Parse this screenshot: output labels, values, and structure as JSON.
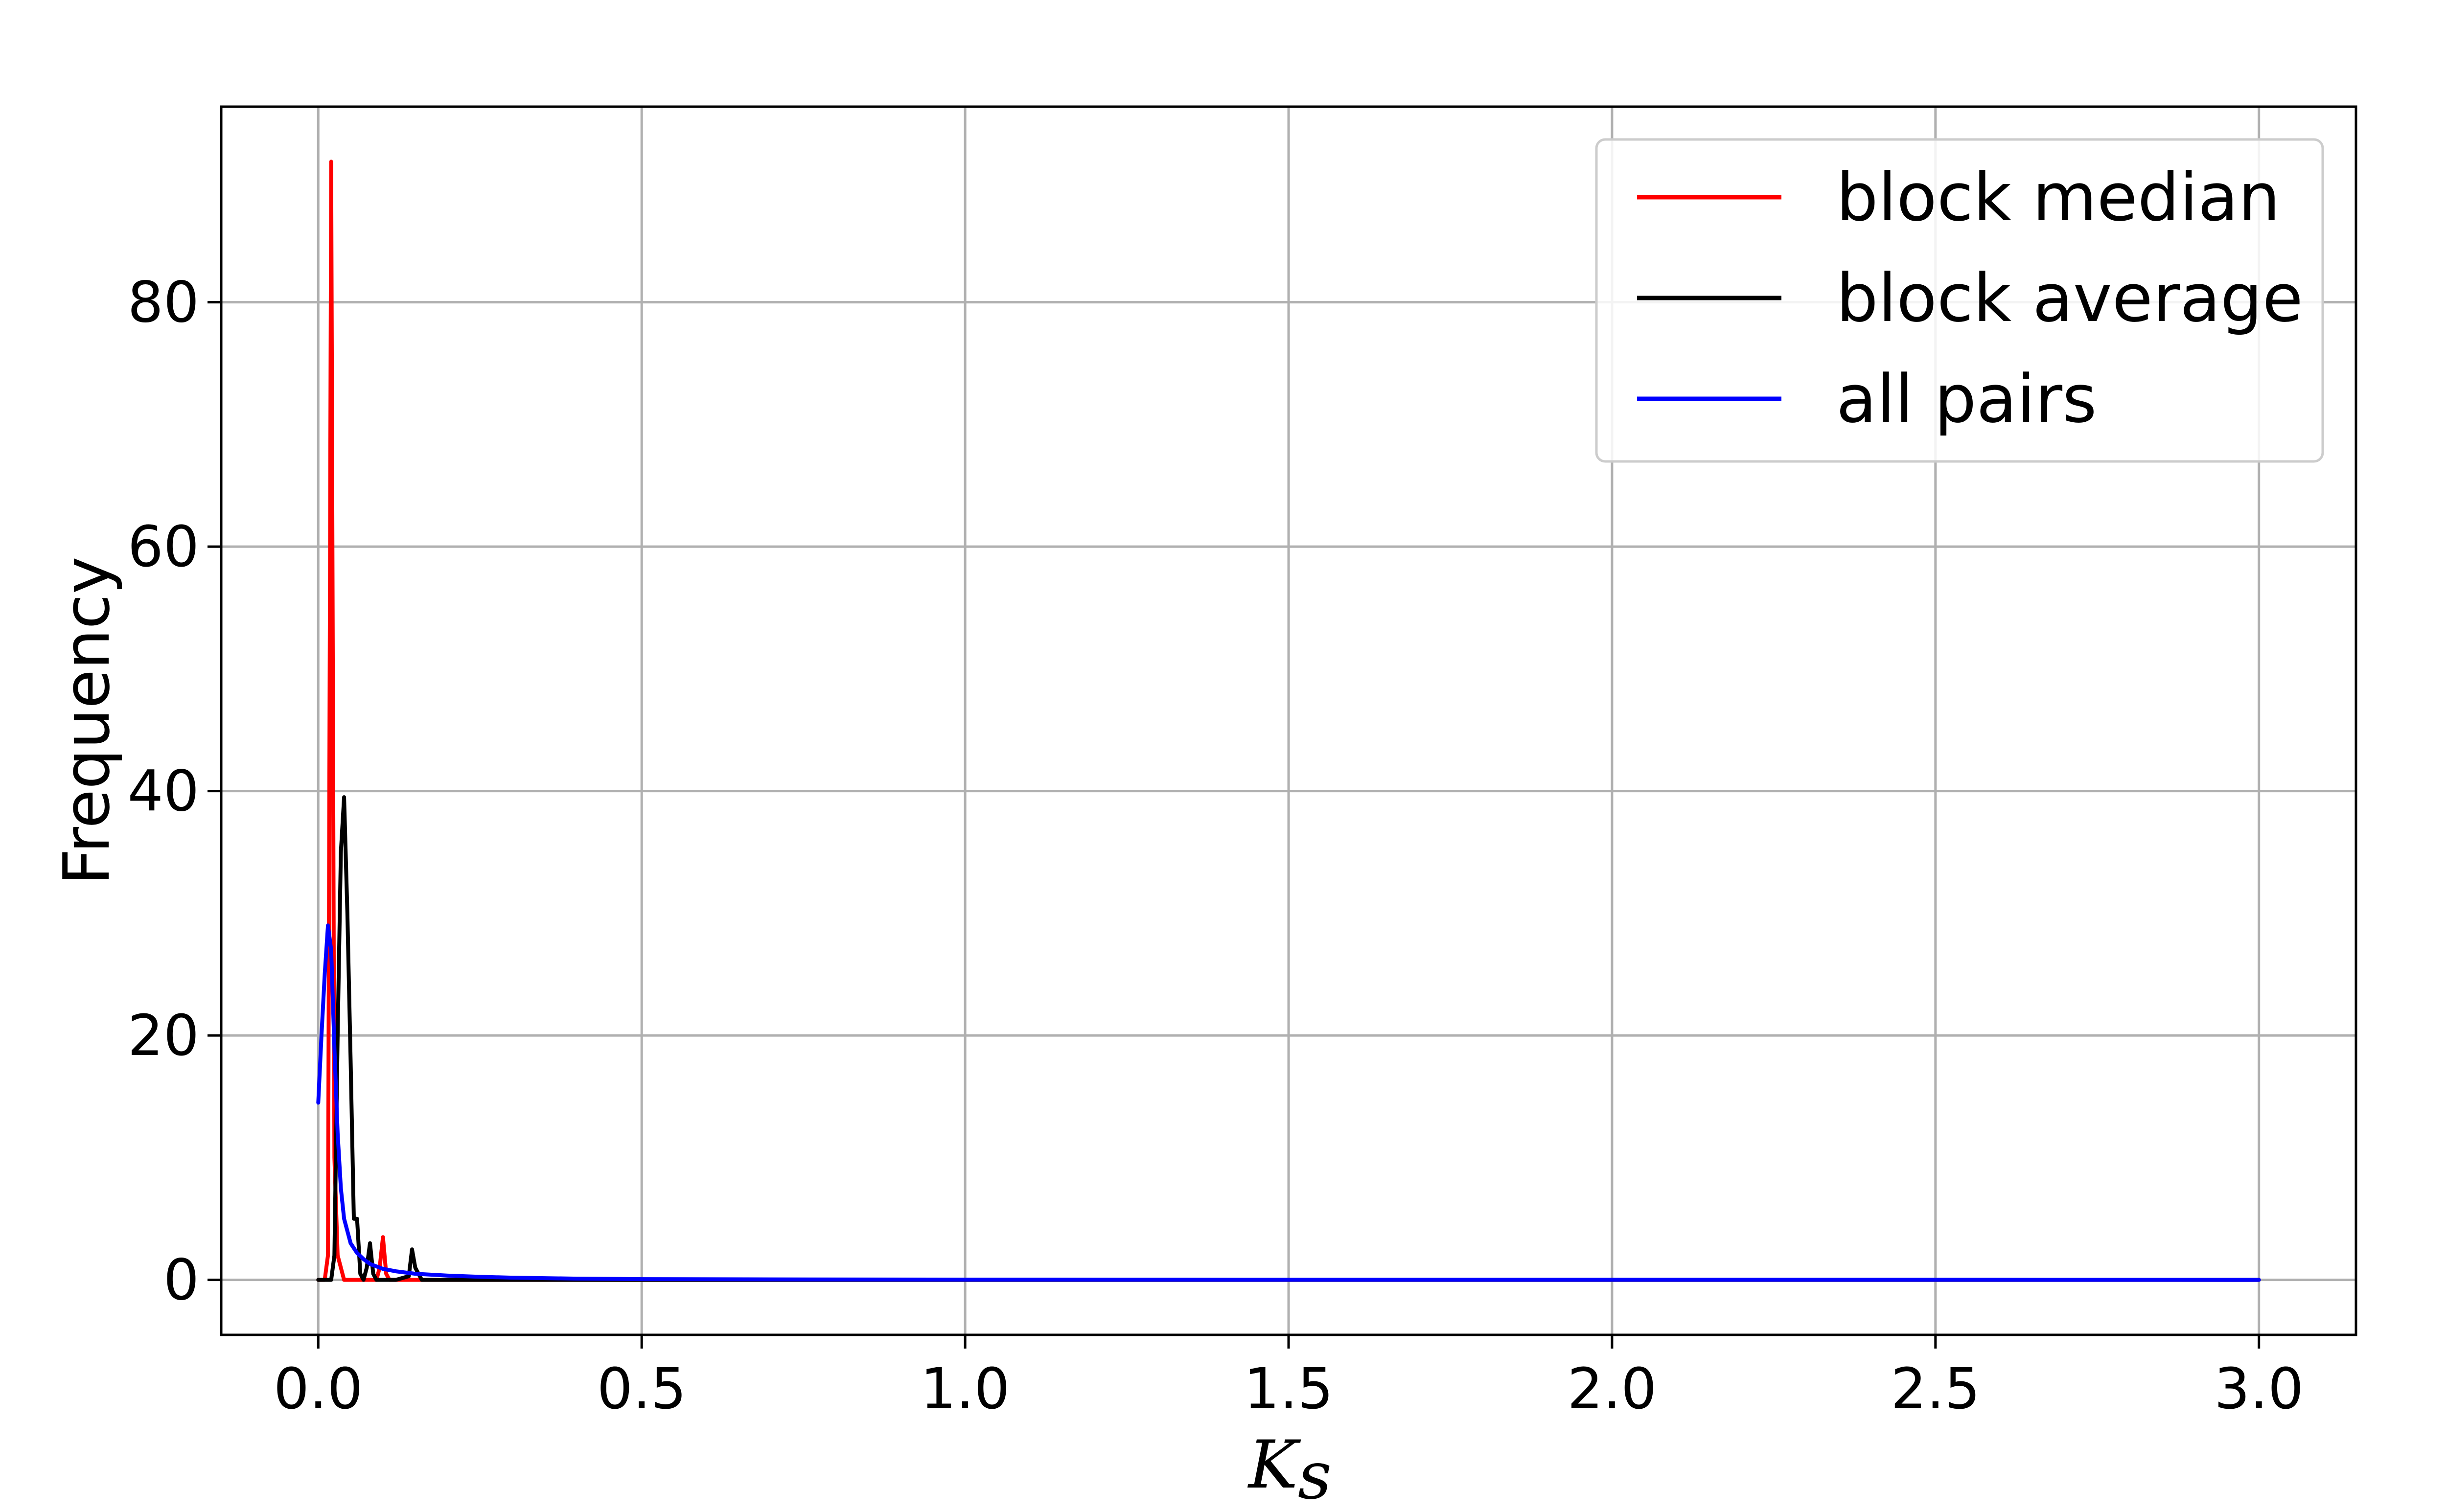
{
  "chart_data": {
    "type": "line",
    "title": "",
    "xlabel_main": "K",
    "xlabel_sub": "s",
    "ylabel": "Frequency",
    "xlim": [
      -0.15,
      3.15
    ],
    "ylim": [
      -4.5,
      96
    ],
    "x_ticks": [
      0.0,
      0.5,
      1.0,
      1.5,
      2.0,
      2.5,
      3.0
    ],
    "x_tick_labels": [
      "0.0",
      "0.5",
      "1.0",
      "1.5",
      "2.0",
      "2.5",
      "3.0"
    ],
    "y_ticks": [
      0,
      20,
      40,
      60,
      80
    ],
    "y_tick_labels": [
      "0",
      "20",
      "40",
      "60",
      "80"
    ],
    "grid": true,
    "legend_position": "top-right",
    "series": [
      {
        "name": "block median",
        "color": "#ff0000",
        "x": [
          0.0,
          0.01,
          0.015,
          0.02,
          0.025,
          0.03,
          0.04,
          0.05,
          0.06,
          0.07,
          0.08,
          0.09,
          0.095,
          0.1,
          0.105,
          0.11,
          0.12,
          0.13,
          0.15,
          0.2,
          0.3,
          0.5,
          1.0,
          1.5,
          2.0,
          2.5,
          3.0
        ],
        "y": [
          0,
          0,
          2,
          91.5,
          10,
          2,
          0,
          0,
          0,
          0,
          0,
          0,
          1,
          3.5,
          0.5,
          0,
          0,
          0,
          0,
          0,
          0,
          0,
          0,
          0,
          0,
          0,
          0
        ]
      },
      {
        "name": "block average",
        "color": "#000000",
        "x": [
          0.0,
          0.02,
          0.025,
          0.03,
          0.035,
          0.04,
          0.045,
          0.05,
          0.055,
          0.06,
          0.065,
          0.07,
          0.075,
          0.08,
          0.085,
          0.09,
          0.1,
          0.12,
          0.14,
          0.145,
          0.15,
          0.16,
          0.2,
          0.3,
          0.5,
          1.0,
          1.5,
          2.0,
          2.5,
          3.0
        ],
        "y": [
          0,
          0,
          2,
          20,
          35,
          39.5,
          30,
          18,
          5,
          5,
          0.5,
          0,
          1,
          3,
          0.5,
          0,
          0,
          0,
          0.3,
          2.5,
          1,
          0,
          0,
          0,
          0,
          0,
          0,
          0,
          0,
          0
        ]
      },
      {
        "name": "all pairs",
        "color": "#0000ff",
        "x": [
          0.0,
          0.005,
          0.01,
          0.015,
          0.02,
          0.025,
          0.03,
          0.035,
          0.04,
          0.05,
          0.06,
          0.07,
          0.08,
          0.1,
          0.12,
          0.15,
          0.2,
          0.25,
          0.3,
          0.4,
          0.5,
          0.7,
          1.0,
          1.5,
          2.0,
          2.5,
          3.0
        ],
        "y": [
          14.5,
          20,
          25,
          29,
          27,
          19,
          12,
          7.5,
          5,
          3,
          2.2,
          1.7,
          1.3,
          0.9,
          0.7,
          0.5,
          0.35,
          0.25,
          0.18,
          0.1,
          0.06,
          0.04,
          0.02,
          0.01,
          0.01,
          0.01,
          0
        ]
      }
    ]
  }
}
